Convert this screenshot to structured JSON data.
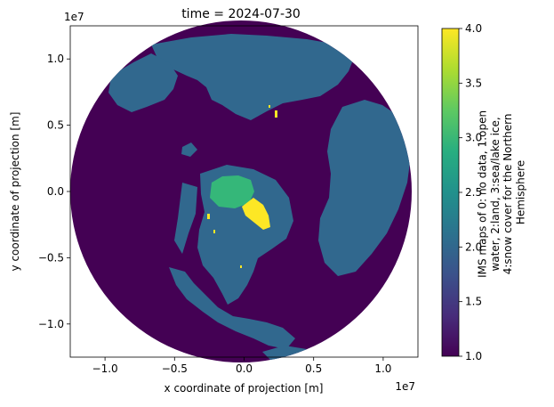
{
  "chart_data": {
    "type": "heatmap",
    "title": "time = 2024-07-30",
    "xlabel": "x coordinate of projection [m]",
    "ylabel": "y coordinate of projection [m]",
    "x_exponent": "1e7",
    "y_exponent": "1e7",
    "xlim": [
      -1.25,
      1.25
    ],
    "ylim": [
      -1.25,
      1.25
    ],
    "x_ticks": [
      -1.0,
      -0.5,
      0.0,
      0.5,
      1.0
    ],
    "x_tick_labels": [
      "−1.0",
      "−0.5",
      "0.0",
      "0.5",
      "1.0"
    ],
    "y_ticks": [
      1.0,
      0.5,
      0.0,
      -0.5,
      -1.0
    ],
    "y_tick_labels": [
      "1.0",
      "0.5",
      "0.0",
      "−0.5",
      "−1.0"
    ],
    "grid": false,
    "colorbar": {
      "label_lines": [
        "IMS maps of 0: no data, 1:open",
        "water, 2:land, 3:sea/lake ice,",
        "4:snow cover for the Northern",
        "Hemisphere"
      ],
      "range": [
        1.0,
        4.0
      ],
      "ticks": [
        4.0,
        3.5,
        3.0,
        2.5,
        2.0,
        1.5,
        1.0
      ],
      "tick_labels": [
        "4.0",
        "3.5",
        "3.0",
        "2.5",
        "2.0",
        "1.5",
        "1.0"
      ],
      "colormap": "viridis"
    },
    "classes": [
      {
        "value": 1,
        "color": "#440154"
      },
      {
        "value": 2,
        "color": "#31688e"
      },
      {
        "value": 3,
        "color": "#35b779"
      },
      {
        "value": 4,
        "color": "#fde725"
      }
    ]
  }
}
